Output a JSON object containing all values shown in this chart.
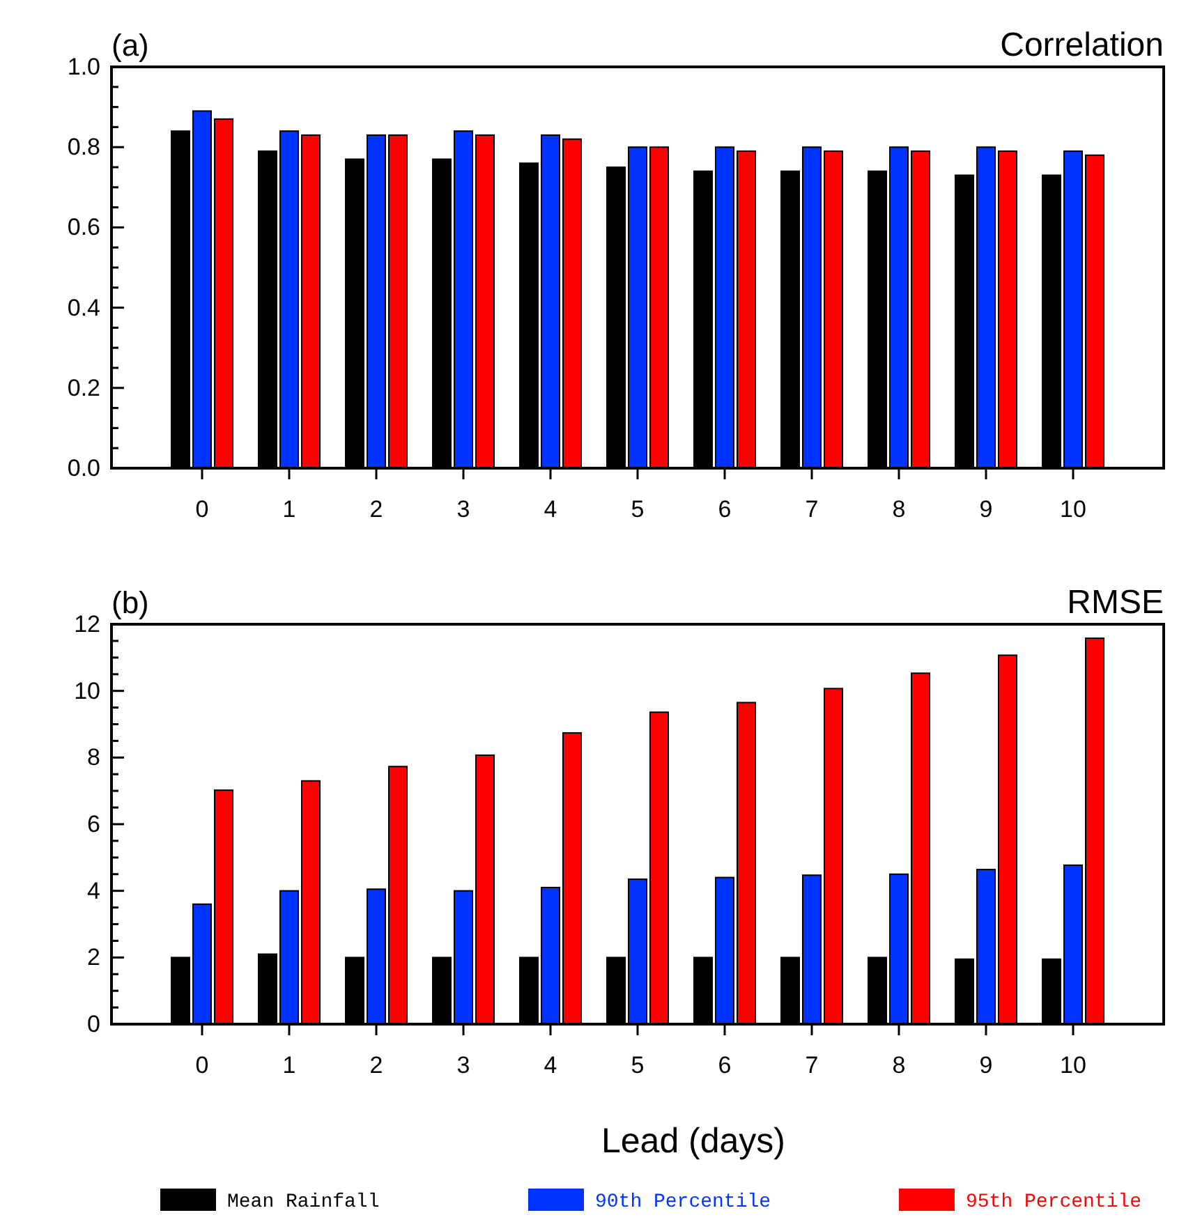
{
  "chart_data": [
    {
      "type": "bar",
      "title": "Correlation",
      "annotations": [
        "(a)"
      ],
      "categories": [
        "0",
        "1",
        "2",
        "3",
        "4",
        "5",
        "6",
        "7",
        "8",
        "9",
        "10"
      ],
      "series": [
        {
          "color": "#000000",
          "values": [
            0.84,
            0.79,
            0.77,
            0.77,
            0.76,
            0.75,
            0.74,
            0.74,
            0.74,
            0.73,
            0.73
          ]
        },
        {
          "color": "#0033ff",
          "values": [
            0.89,
            0.84,
            0.83,
            0.84,
            0.83,
            0.8,
            0.8,
            0.8,
            0.8,
            0.8,
            0.79
          ]
        },
        {
          "color": "#ff0000",
          "values": [
            0.87,
            0.83,
            0.83,
            0.83,
            0.82,
            0.8,
            0.79,
            0.79,
            0.79,
            0.79,
            0.78
          ]
        }
      ],
      "ylim": [
        0,
        1
      ],
      "yticks": [
        {
          "value": 0,
          "label": "0.0"
        },
        {
          "value": 0.05,
          "label": null
        },
        {
          "value": 0.1,
          "label": null
        },
        {
          "value": 0.15,
          "label": null
        },
        {
          "value": 0.2,
          "label": "0.2"
        },
        {
          "value": 0.25,
          "label": null
        },
        {
          "value": 0.3,
          "label": null
        },
        {
          "value": 0.35,
          "label": null
        },
        {
          "value": 0.4,
          "label": "0.4"
        },
        {
          "value": 0.45,
          "label": null
        },
        {
          "value": 0.5,
          "label": null
        },
        {
          "value": 0.55,
          "label": null
        },
        {
          "value": 0.6,
          "label": "0.6"
        },
        {
          "value": 0.65,
          "label": null
        },
        {
          "value": 0.7,
          "label": null
        },
        {
          "value": 0.75,
          "label": null
        },
        {
          "value": 0.8,
          "label": "0.8"
        },
        {
          "value": 0.85,
          "label": null
        },
        {
          "value": 0.9,
          "label": null
        },
        {
          "value": 0.95,
          "label": null
        },
        {
          "value": 1,
          "label": "1.0"
        }
      ]
    },
    {
      "type": "bar",
      "title": "RMSE",
      "annotations": [
        "(b)"
      ],
      "xlabel": "Lead (days)",
      "categories": [
        "0",
        "1",
        "2",
        "3",
        "4",
        "5",
        "6",
        "7",
        "8",
        "9",
        "10"
      ],
      "series": [
        {
          "name": "Mean Rainfall",
          "color": "#000000",
          "values": [
            2.0,
            2.1,
            2.0,
            2.0,
            2.0,
            2.0,
            2.0,
            2.0,
            2.0,
            1.95,
            1.95
          ]
        },
        {
          "name": "90th Percentile",
          "color": "#0033ff",
          "values": [
            3.6,
            4.0,
            4.05,
            4.0,
            4.1,
            4.35,
            4.4,
            4.47,
            4.5,
            4.64,
            4.77
          ]
        },
        {
          "name": "95th Percentile",
          "color": "#ff0000",
          "values": [
            7.02,
            7.3,
            7.73,
            8.07,
            8.74,
            9.36,
            9.65,
            10.07,
            10.53,
            11.07,
            11.58
          ]
        }
      ],
      "ylim": [
        0,
        12
      ],
      "yticks": [
        0,
        {
          "value": 0.5,
          "label": null
        },
        {
          "value": 1,
          "label": null
        },
        {
          "value": 1.5,
          "label": null
        },
        2,
        {
          "value": 2.5,
          "label": null
        },
        {
          "value": 3,
          "label": null
        },
        {
          "value": 3.5,
          "label": null
        },
        4,
        {
          "value": 4.5,
          "label": null
        },
        {
          "value": 5,
          "label": null
        },
        {
          "value": 5.5,
          "label": null
        },
        6,
        {
          "value": 6.5,
          "label": null
        },
        {
          "value": 7,
          "label": null
        },
        {
          "value": 7.5,
          "label": null
        },
        8,
        {
          "value": 8.5,
          "label": null
        },
        {
          "value": 9,
          "label": null
        },
        {
          "value": 9.5,
          "label": null
        },
        10,
        {
          "value": 10.5,
          "label": null
        },
        {
          "value": 11,
          "label": null
        },
        {
          "value": 11.5,
          "label": null
        },
        12
      ],
      "legend": "bottom"
    }
  ]
}
